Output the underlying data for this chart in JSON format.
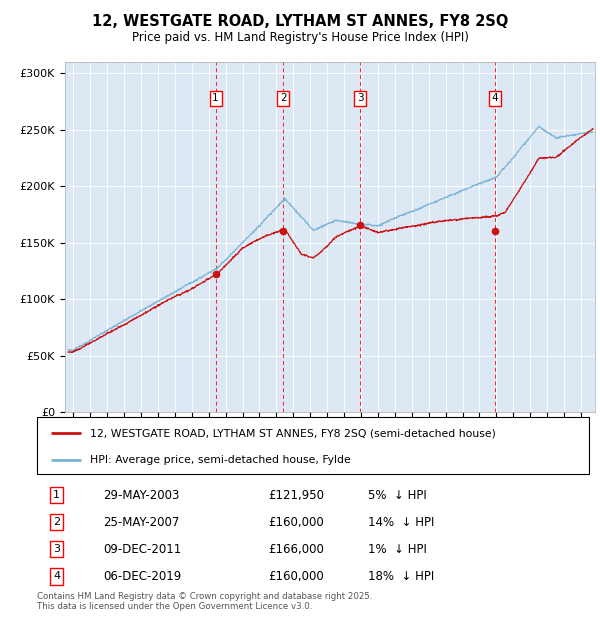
{
  "title_line1": "12, WESTGATE ROAD, LYTHAM ST ANNES, FY8 2SQ",
  "title_line2": "Price paid vs. HM Land Registry's House Price Index (HPI)",
  "ylabel_ticks": [
    "£0",
    "£50K",
    "£100K",
    "£150K",
    "£200K",
    "£250K",
    "£300K"
  ],
  "ytick_values": [
    0,
    50000,
    100000,
    150000,
    200000,
    250000,
    300000
  ],
  "ymin": 0,
  "ymax": 310000,
  "xmin": 1994.5,
  "xmax": 2025.8,
  "hpi_color": "#7ab3d4",
  "price_color": "#cc1111",
  "background_color": "#dce9f5",
  "grid_color": "#ffffff",
  "sale_markers": [
    {
      "num": 1,
      "year": 2003.41,
      "price": 121950,
      "date": "29-MAY-2003",
      "pct": "5%",
      "dir": "↓"
    },
    {
      "num": 2,
      "year": 2007.4,
      "price": 160000,
      "date": "25-MAY-2007",
      "pct": "14%",
      "dir": "↓"
    },
    {
      "num": 3,
      "year": 2011.94,
      "price": 166000,
      "date": "09-DEC-2011",
      "pct": "1%",
      "dir": "↓"
    },
    {
      "num": 4,
      "year": 2019.93,
      "price": 160000,
      "date": "06-DEC-2019",
      "pct": "18%",
      "dir": "↓"
    }
  ],
  "legend_label_red": "12, WESTGATE ROAD, LYTHAM ST ANNES, FY8 2SQ (semi-detached house)",
  "legend_label_blue": "HPI: Average price, semi-detached house, Fylde",
  "footer_line1": "Contains HM Land Registry data © Crown copyright and database right 2025.",
  "footer_line2": "This data is licensed under the Open Government Licence v3.0."
}
